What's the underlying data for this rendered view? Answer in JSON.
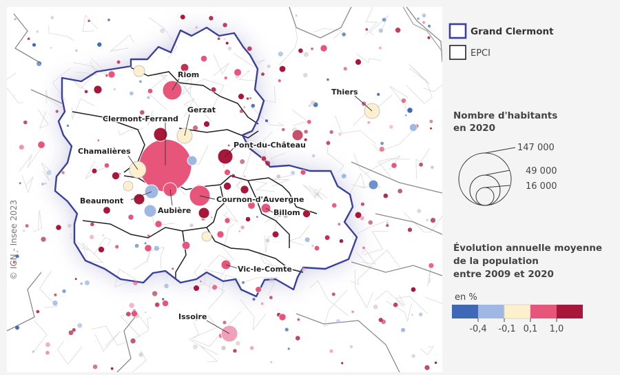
{
  "legend": {
    "perimeter": {
      "label": "Grand Clermont",
      "color": "#3a3f9a"
    },
    "epci": {
      "label": "EPCI",
      "color": "#333333"
    },
    "size": {
      "title_line1": "Nombre d'habitants",
      "title_line2": "en 2020",
      "values": [
        147000,
        49000,
        16000
      ],
      "labels": [
        "147 000",
        "49 000",
        "16 000"
      ]
    },
    "evolution": {
      "title_line1": "Évolution annuelle moyenne",
      "title_line2": "de la population",
      "title_line3": "entre 2009 et 2020",
      "unit": "en %",
      "colors": [
        "#3f68b6",
        "#9fb8e3",
        "#fdf0cf",
        "#e8557b",
        "#a8173a"
      ],
      "breaks": [
        "-0,4",
        "-0,1",
        "0,1",
        "1,0"
      ]
    }
  },
  "credit": "© IGN - Insee 2023",
  "places": [
    {
      "name": "Clermont-Ferrand",
      "population": 147000,
      "class": 3
    },
    {
      "name": "Cournon-d'Auvergne",
      "population": 20000,
      "class": 3
    },
    {
      "name": "Riom",
      "population": 19000,
      "class": 3
    },
    {
      "name": "Chamalières",
      "population": 17000,
      "class": 2
    },
    {
      "name": "Issoire",
      "population": 15000,
      "class": 3
    },
    {
      "name": "Beaumont",
      "population": 11000,
      "class": 1
    },
    {
      "name": "Aubière",
      "population": 10000,
      "class": 1
    },
    {
      "name": "Thiers",
      "population": 11500,
      "class": 2
    },
    {
      "name": "Gerzat",
      "population": 10000,
      "class": 2
    },
    {
      "name": "Pont-du-Château",
      "population": 12000,
      "class": 4
    },
    {
      "name": "Billom",
      "population": 4800,
      "class": 3
    },
    {
      "name": "Vic-le-Comte",
      "population": 5300,
      "class": 3
    }
  ]
}
